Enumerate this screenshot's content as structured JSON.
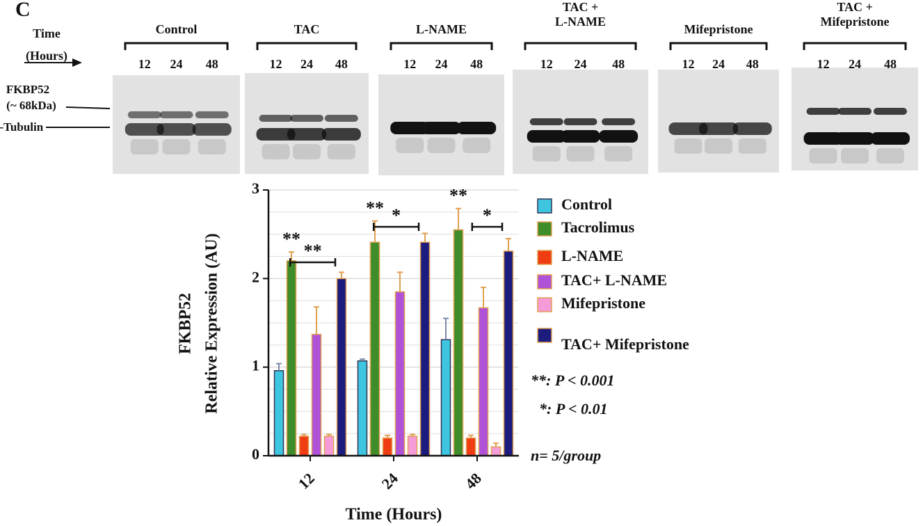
{
  "blot": {
    "panel": "C",
    "time_label": [
      "Time",
      "(Hours)"
    ],
    "groups": [
      {
        "name": [
          "Control"
        ],
        "lanes": [
          "12",
          "24",
          "48"
        ]
      },
      {
        "name": [
          "TAC"
        ],
        "lanes": [
          "12",
          "24",
          "48"
        ]
      },
      {
        "name": [
          "L-NAME"
        ],
        "lanes": [
          "12",
          "24",
          "48"
        ]
      },
      {
        "name": [
          "TAC +",
          "L-NAME"
        ],
        "lanes": [
          "12",
          "24",
          "48"
        ]
      },
      {
        "name": [
          "Mifepristone"
        ],
        "lanes": [
          "12",
          "24",
          "48"
        ]
      },
      {
        "name": [
          "TAC +",
          "Mifepristone"
        ],
        "lanes": [
          "12",
          "24",
          "48"
        ]
      }
    ],
    "row_labels": [
      "FKBP52",
      "(~ 68kDa)",
      "α-Tubulin"
    ]
  },
  "chart_data": {
    "type": "bar",
    "ylabel": [
      "FKBP52",
      "Relative Expression (AU)"
    ],
    "xlabel": "Time (Hours)",
    "categories": [
      "12",
      "24",
      "48"
    ],
    "series": [
      {
        "name": "Control",
        "color": "#3ec6e0",
        "values": [
          0.96,
          1.07,
          1.31
        ],
        "errors": [
          0.08,
          0.02,
          0.24
        ]
      },
      {
        "name": "Tacrolimus",
        "color": "#3f8c2a",
        "values": [
          2.2,
          2.41,
          2.55
        ],
        "errors": [
          0.1,
          0.24,
          0.24
        ]
      },
      {
        "name": "L-NAME",
        "color": "#f03c12",
        "values": [
          0.22,
          0.2,
          0.2
        ],
        "errors": [
          0.02,
          0.03,
          0.03
        ]
      },
      {
        "name": "TAC+ L-NAME",
        "color": "#b052d8",
        "values": [
          1.37,
          1.85,
          1.67
        ],
        "errors": [
          0.31,
          0.22,
          0.23
        ]
      },
      {
        "name": "Mifepristone",
        "color": "#f59cd8",
        "values": [
          0.22,
          0.22,
          0.1
        ],
        "errors": [
          0.02,
          0.02,
          0.04
        ]
      },
      {
        "name": "TAC+ Mifepristone",
        "color": "#1c1c7e",
        "values": [
          2.0,
          2.41,
          2.31
        ],
        "errors": [
          0.07,
          0.1,
          0.14
        ]
      }
    ],
    "ylim": [
      0,
      3
    ],
    "yticks": [
      0,
      1,
      2,
      3
    ],
    "minor_yticks": [
      0.25,
      0.5,
      0.75,
      1.25,
      1.5,
      1.75,
      2.25,
      2.5,
      2.75
    ],
    "grid": true,
    "significance": {
      "stars": [
        "**",
        "**",
        "**"
      ],
      "brackets": [
        "**",
        "*",
        "*"
      ]
    },
    "notes": [
      "**: P < 0.001",
      "*: P < 0.01",
      "n= 5/group"
    ]
  }
}
